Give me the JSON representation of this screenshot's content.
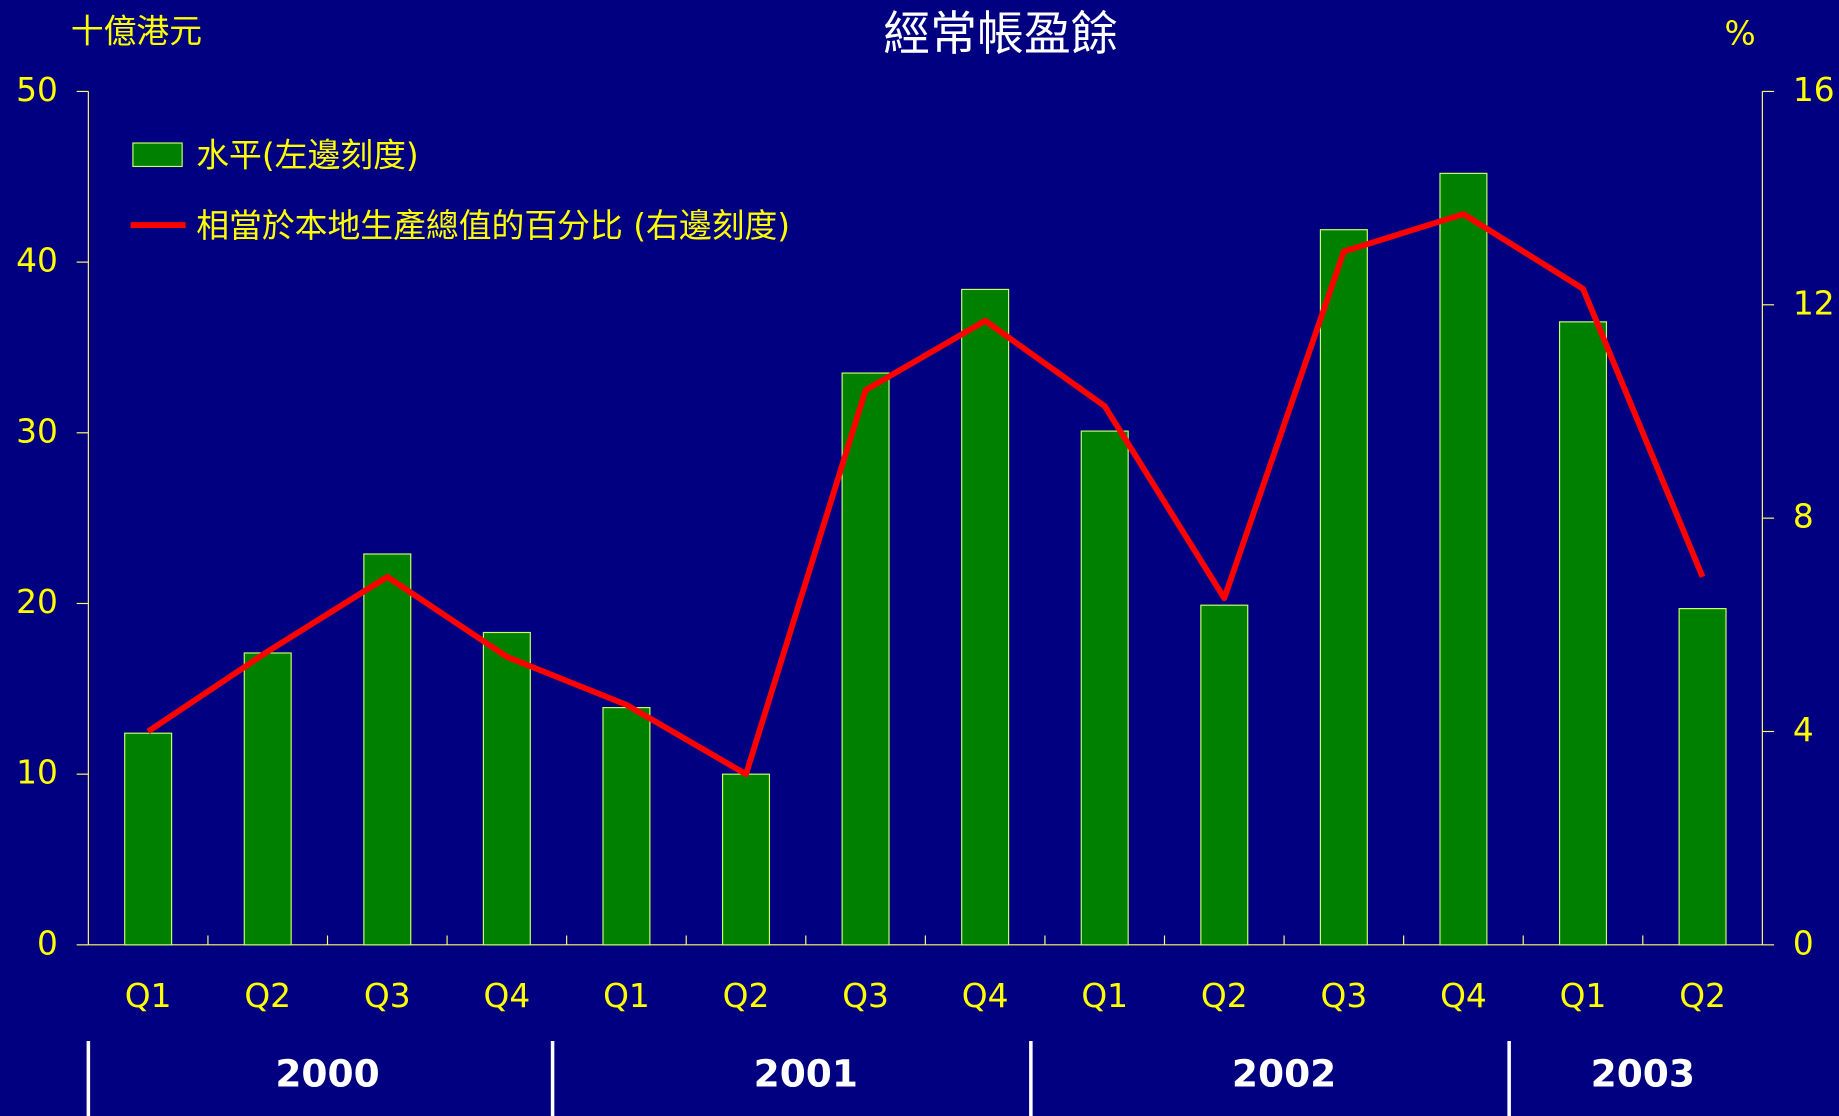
{
  "chart_data": {
    "type": "bar_line",
    "title": "經常帳盈餘",
    "ylabel": "十億港元",
    "y2label": "%",
    "categories": [
      "Q1",
      "Q2",
      "Q3",
      "Q4",
      "Q1",
      "Q2",
      "Q3",
      "Q4",
      "Q1",
      "Q2",
      "Q3",
      "Q4",
      "Q1",
      "Q2"
    ],
    "groups": [
      {
        "label": "2000",
        "span": 4
      },
      {
        "label": "2001",
        "span": 4
      },
      {
        "label": "2002",
        "span": 4
      },
      {
        "label": "2003",
        "span": 2
      }
    ],
    "series": [
      {
        "name": "水平(左邊刻度)",
        "type": "bar",
        "color": "#008000",
        "values": [
          12.4,
          17.1,
          22.9,
          18.3,
          13.9,
          10.0,
          33.5,
          38.4,
          30.1,
          19.9,
          41.9,
          45.2,
          36.5,
          19.7
        ]
      },
      {
        "name": "相當於本地生產總值的百分比 (右邊刻度)",
        "type": "line",
        "axis": "y2",
        "color": "#ff0000",
        "values": [
          4.0,
          5.5,
          6.9,
          5.4,
          4.5,
          3.2,
          10.4,
          11.7,
          10.1,
          6.5,
          13.0,
          13.7,
          12.3,
          6.9
        ]
      }
    ],
    "ylim": [
      0,
      50
    ],
    "yticks": [
      0,
      10,
      20,
      30,
      40,
      50
    ],
    "y2lim": [
      0,
      16
    ],
    "y2ticks": [
      0,
      4,
      8,
      12,
      16
    ]
  }
}
